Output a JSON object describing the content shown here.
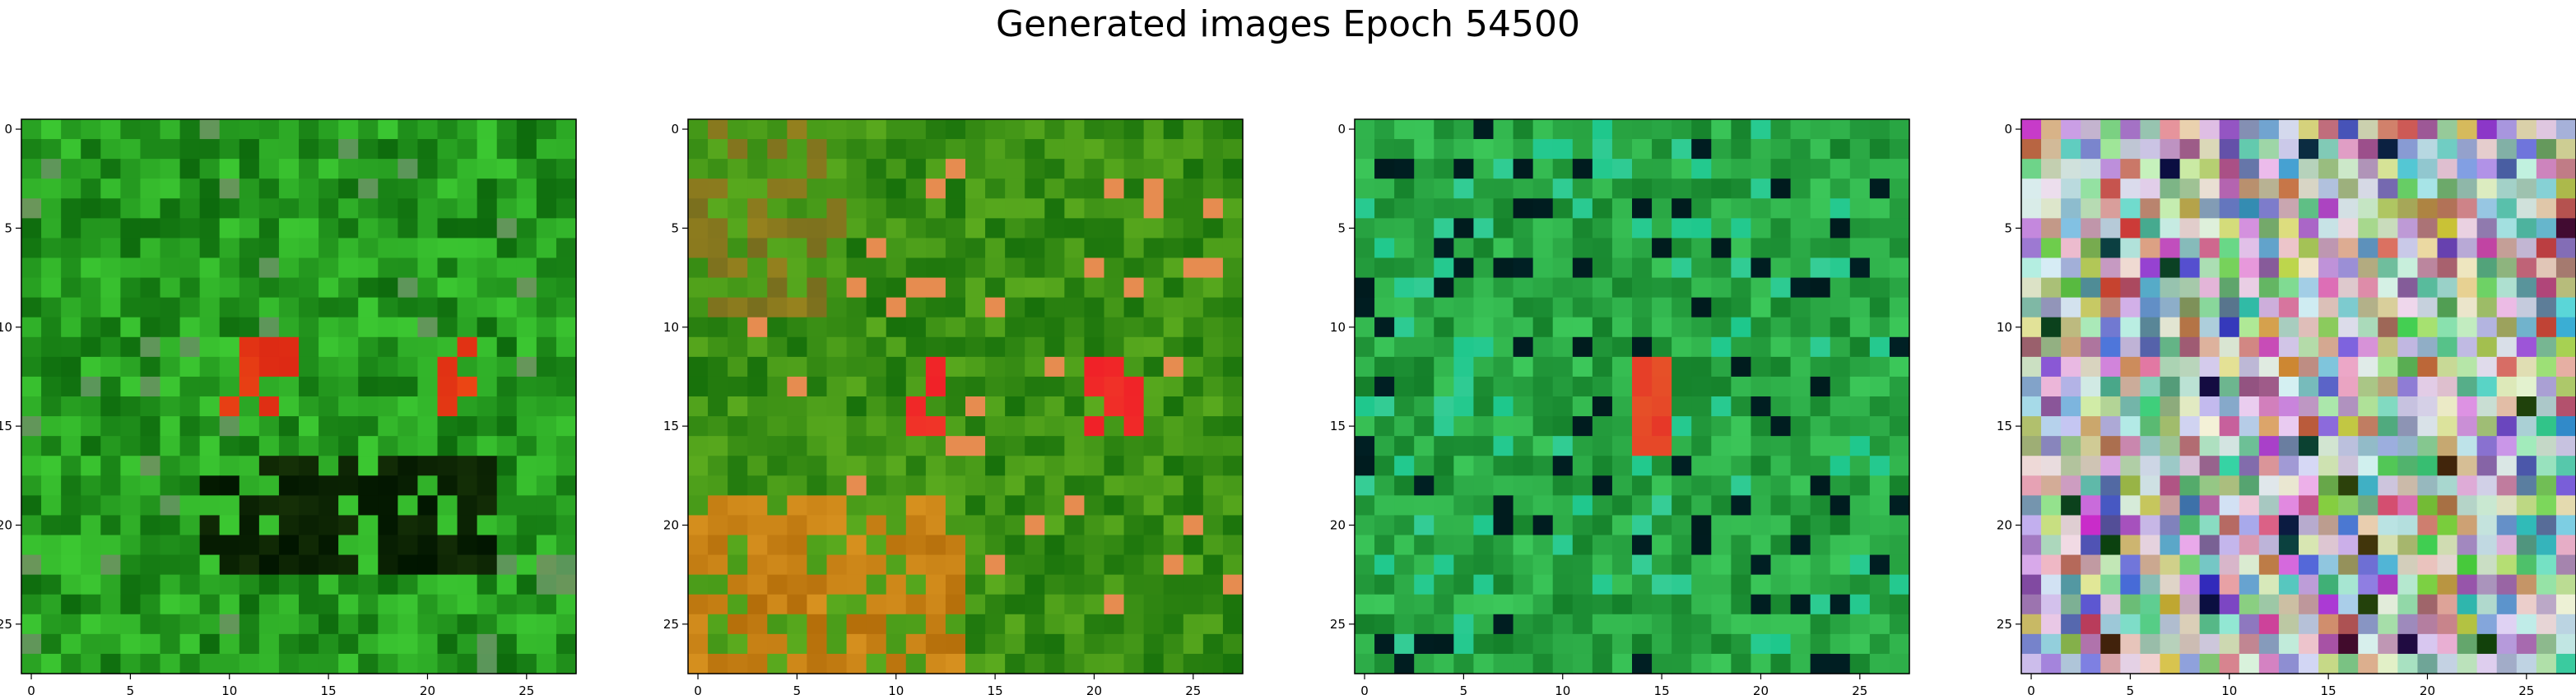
{
  "figure": {
    "title": "Generated images Epoch 54500",
    "background": "#ffffff"
  },
  "chart_data": [
    {
      "type": "heatmap",
      "palette": "green",
      "grid": false,
      "shape": [
        28,
        28
      ],
      "xlim": [
        -0.5,
        27.5
      ],
      "ylim": [
        27.5,
        -0.5
      ],
      "xticks": [
        0,
        5,
        10,
        15,
        20,
        25
      ],
      "yticks": [
        0,
        5,
        10,
        15,
        20,
        25
      ]
    },
    {
      "type": "heatmap",
      "palette": "olive",
      "grid": false,
      "shape": [
        28,
        28
      ],
      "xlim": [
        -0.5,
        27.5
      ],
      "ylim": [
        27.5,
        -0.5
      ],
      "xticks": [
        0,
        5,
        10,
        15,
        20,
        25
      ],
      "yticks": [
        0,
        5,
        10,
        15,
        20,
        25
      ]
    },
    {
      "type": "heatmap",
      "palette": "teal-green",
      "grid": false,
      "shape": [
        28,
        28
      ],
      "xlim": [
        -0.5,
        27.5
      ],
      "ylim": [
        27.5,
        -0.5
      ],
      "xticks": [
        0,
        5,
        10,
        15,
        20,
        25
      ],
      "yticks": [
        0,
        5,
        10,
        15,
        20,
        25
      ]
    },
    {
      "type": "heatmap",
      "palette": "pastel",
      "grid": false,
      "shape": [
        28,
        28
      ],
      "xlim": [
        -0.5,
        27.5
      ],
      "ylim": [
        27.5,
        -0.5
      ],
      "xticks": [
        0,
        5,
        10,
        15,
        20,
        25
      ],
      "yticks": [
        0,
        5,
        10,
        15,
        20,
        25
      ]
    }
  ]
}
